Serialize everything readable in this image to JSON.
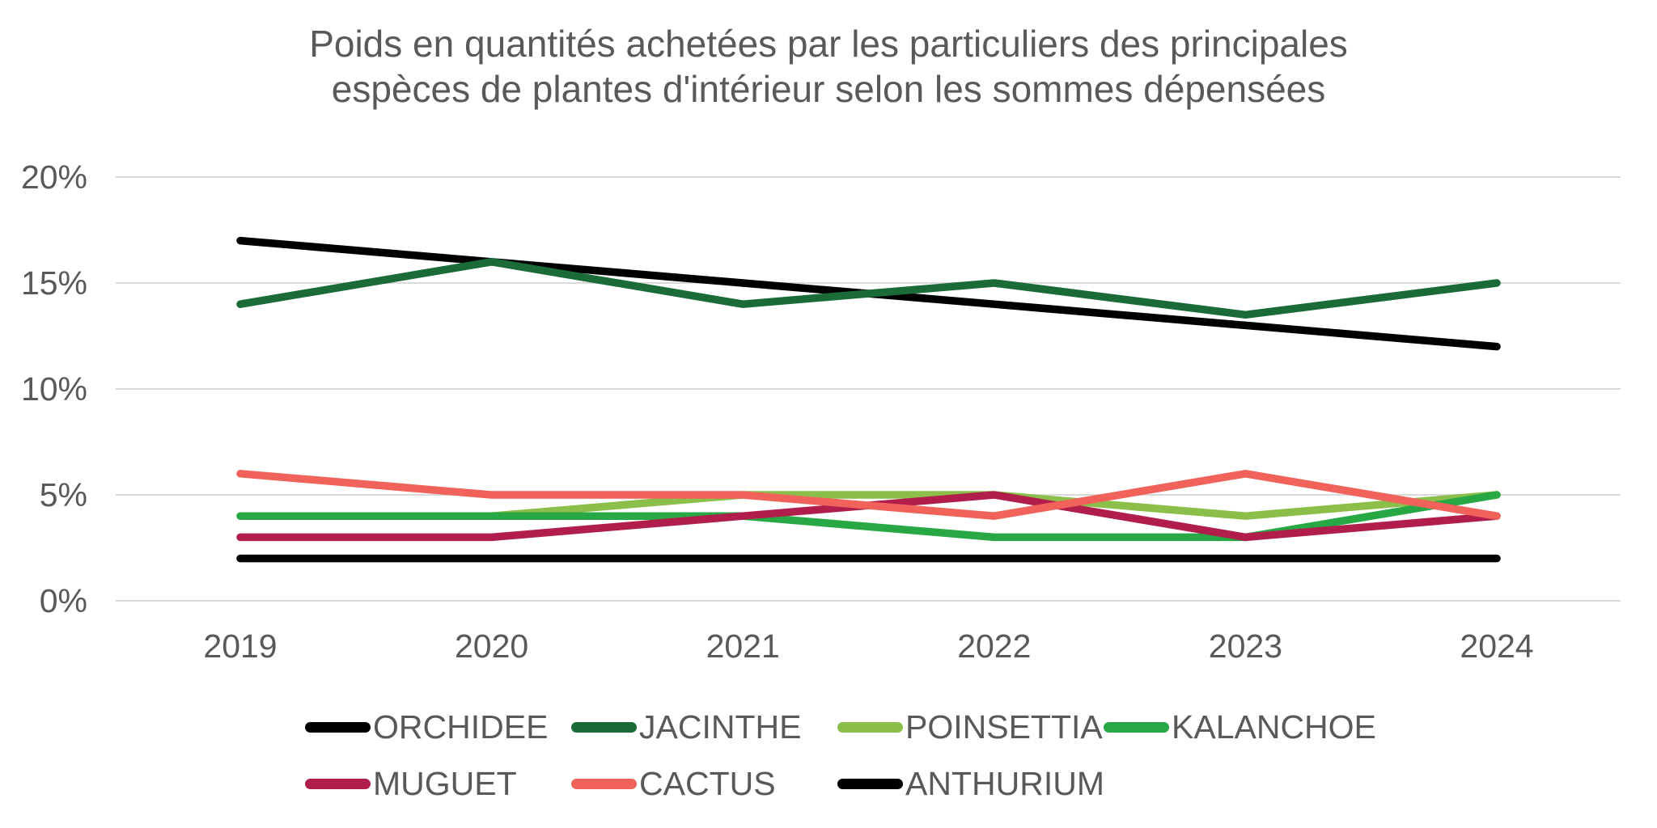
{
  "chart_data": {
    "type": "line",
    "title": "Poids en quantités achetées par les particuliers des principales espèces de plantes d'intérieur selon les sommes dépensées",
    "title_lines": [
      "Poids en quantités achetées par les particuliers des principales",
      "espèces de plantes d'intérieur selon les sommes dépensées"
    ],
    "x": [
      "2019",
      "2020",
      "2021",
      "2022",
      "2023",
      "2024"
    ],
    "y_tick_labels": [
      "0%",
      "5%",
      "10%",
      "15%",
      "20%"
    ],
    "y_tick_values": [
      0,
      5,
      10,
      15,
      20
    ],
    "ylim": [
      0,
      20
    ],
    "xlabel": "",
    "ylabel": "",
    "grid": true,
    "legend_position": "bottom",
    "legend_rows": [
      4,
      3
    ],
    "text_color": "#595959",
    "gridline_color": "#d9d9d9",
    "series": [
      {
        "name": "ORCHIDEE",
        "color": "#000000",
        "values": [
          17,
          16,
          15,
          14,
          13,
          12
        ]
      },
      {
        "name": "JACINTHE",
        "color": "#1a6b38",
        "values": [
          14,
          16,
          14,
          15,
          13.5,
          15
        ]
      },
      {
        "name": "POINSETTIA",
        "color": "#8cbf4a",
        "values": [
          4,
          4,
          5,
          5,
          4,
          5
        ]
      },
      {
        "name": "KALANCHOE",
        "color": "#27a844",
        "values": [
          4,
          4,
          4,
          3,
          3,
          5
        ]
      },
      {
        "name": "MUGUET",
        "color": "#b11e4b",
        "values": [
          3,
          3,
          4,
          5,
          3,
          4
        ]
      },
      {
        "name": "CACTUS",
        "color": "#f1625a",
        "values": [
          6,
          5,
          5,
          4,
          6,
          4
        ]
      },
      {
        "name": "ANTHURIUM",
        "color": "#000000",
        "values": [
          2,
          2,
          2,
          2,
          2,
          2
        ]
      }
    ]
  }
}
